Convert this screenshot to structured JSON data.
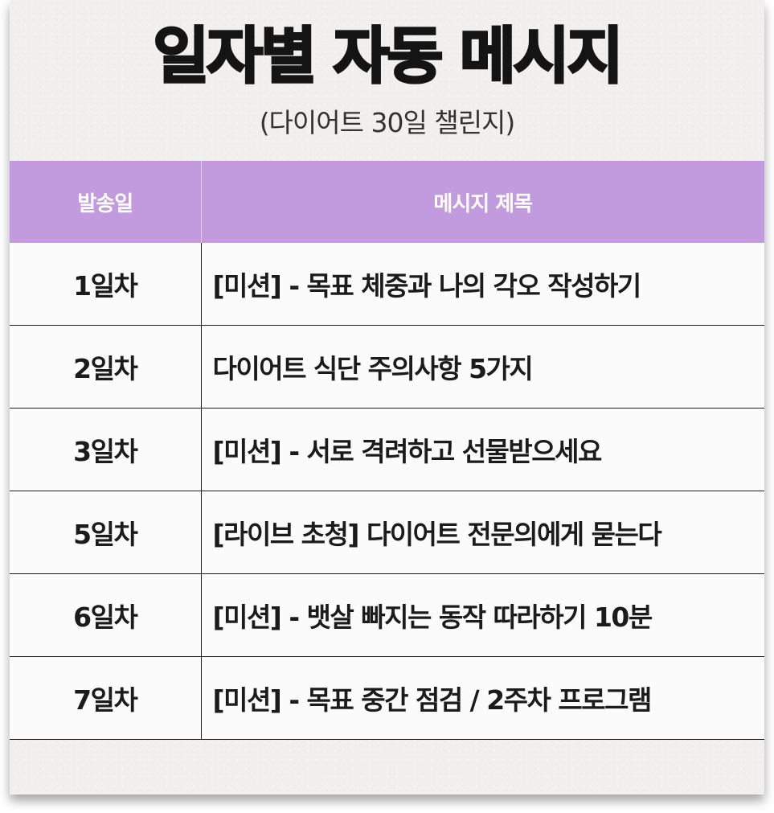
{
  "title": "일자별 자동 메시지",
  "subtitle": "(다이어트 30일 챌린지)",
  "table": {
    "headers": {
      "day": "발송일",
      "message": "메시지 제목"
    },
    "rows": [
      {
        "day": "1일차",
        "message": "[미션] - 목표 체중과 나의 각오 작성하기"
      },
      {
        "day": "2일차",
        "message": "다이어트 식단 주의사항 5가지"
      },
      {
        "day": "3일차",
        "message": "[미션] - 서로 격려하고 선물받으세요"
      },
      {
        "day": "5일차",
        "message": "[라이브 초청] 다이어트 전문의에게 묻는다"
      },
      {
        "day": "6일차",
        "message": "[미션] - 뱃살 빠지는 동작 따라하기 10분"
      },
      {
        "day": "7일차",
        "message": "[미션] - 목표 중간 점검 / 2주차 프로그램"
      }
    ]
  },
  "colors": {
    "header_bg": "#c29ade",
    "card_bg": "#f1f0ee",
    "row_bg": "#fbfbfc"
  }
}
